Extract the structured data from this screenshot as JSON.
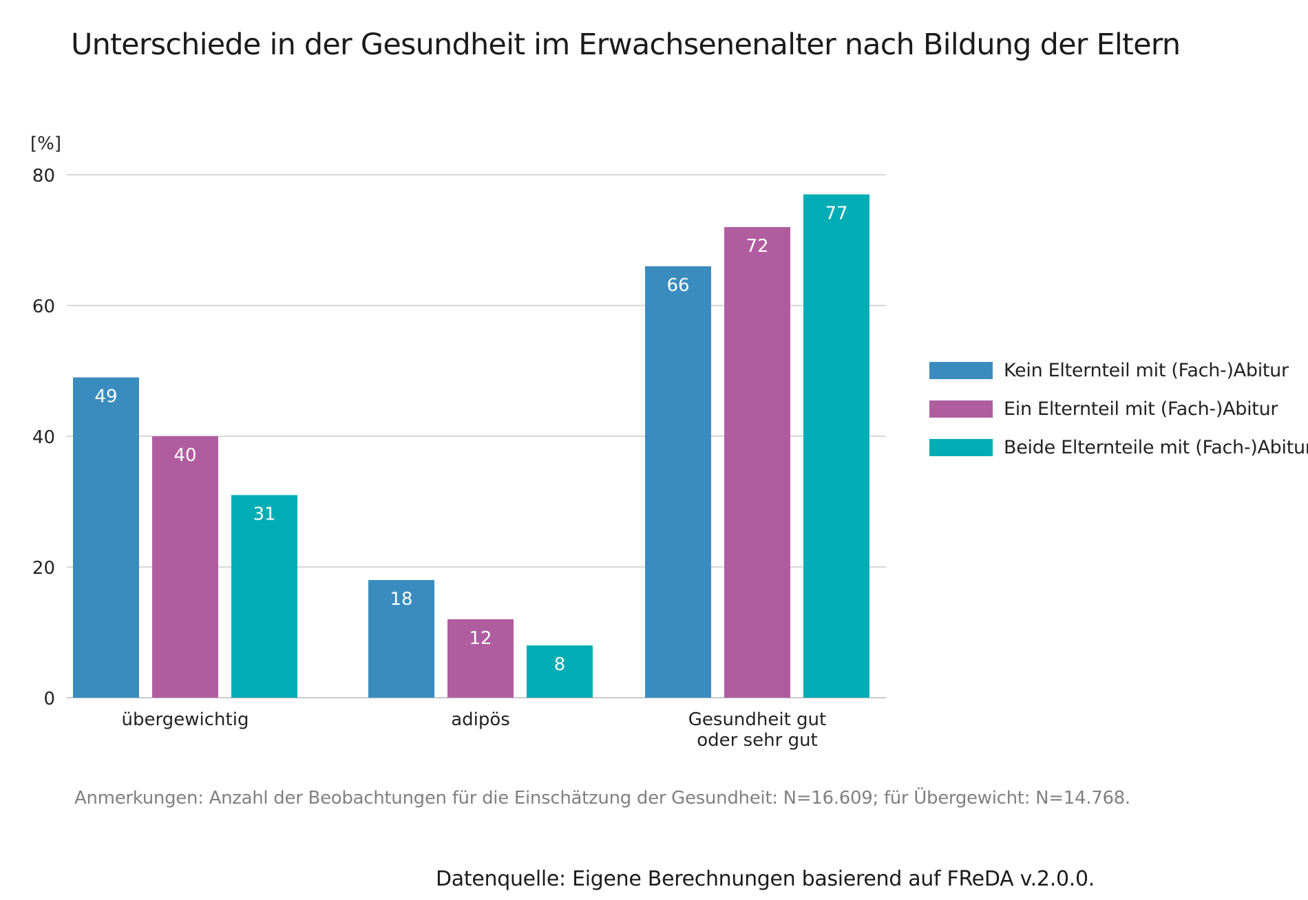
{
  "title": "Unterschiede in der Gesundheit im Erwachsenenalter nach Bildung der Eltern",
  "note": "Anmerkungen: Anzahl der Beobachtungen für die Einschätzung der Gesundheit: N=16.609; für Übergewicht: N=14.768.",
  "source": "Datenquelle: Eigene Berechnungen basierend auf FReDA v.2.0.0.",
  "chart_data": {
    "type": "bar",
    "title": "Unterschiede in der Gesundheit im Erwachsenenalter nach Bildung der Eltern",
    "ylabel": "[%]",
    "xlabel": "",
    "ylim": [
      0,
      80
    ],
    "yticks": [
      0,
      20,
      40,
      60,
      80
    ],
    "grid": true,
    "legend_position": "right",
    "categories": [
      [
        "übergewichtig"
      ],
      [
        "adipös"
      ],
      [
        "Gesundheit gut",
        "oder sehr gut"
      ]
    ],
    "series": [
      {
        "name": "Kein Elternteil mit (Fach-)Abitur",
        "color": "#3a8cbf",
        "values": [
          49,
          18,
          66
        ]
      },
      {
        "name": "Ein Elternteil mit (Fach-)Abitur",
        "color": "#b05da0",
        "values": [
          40,
          12,
          72
        ]
      },
      {
        "name": "Beide Elternteile mit (Fach-)Abitur",
        "color": "#00adb5",
        "values": [
          31,
          8,
          77
        ]
      }
    ]
  }
}
